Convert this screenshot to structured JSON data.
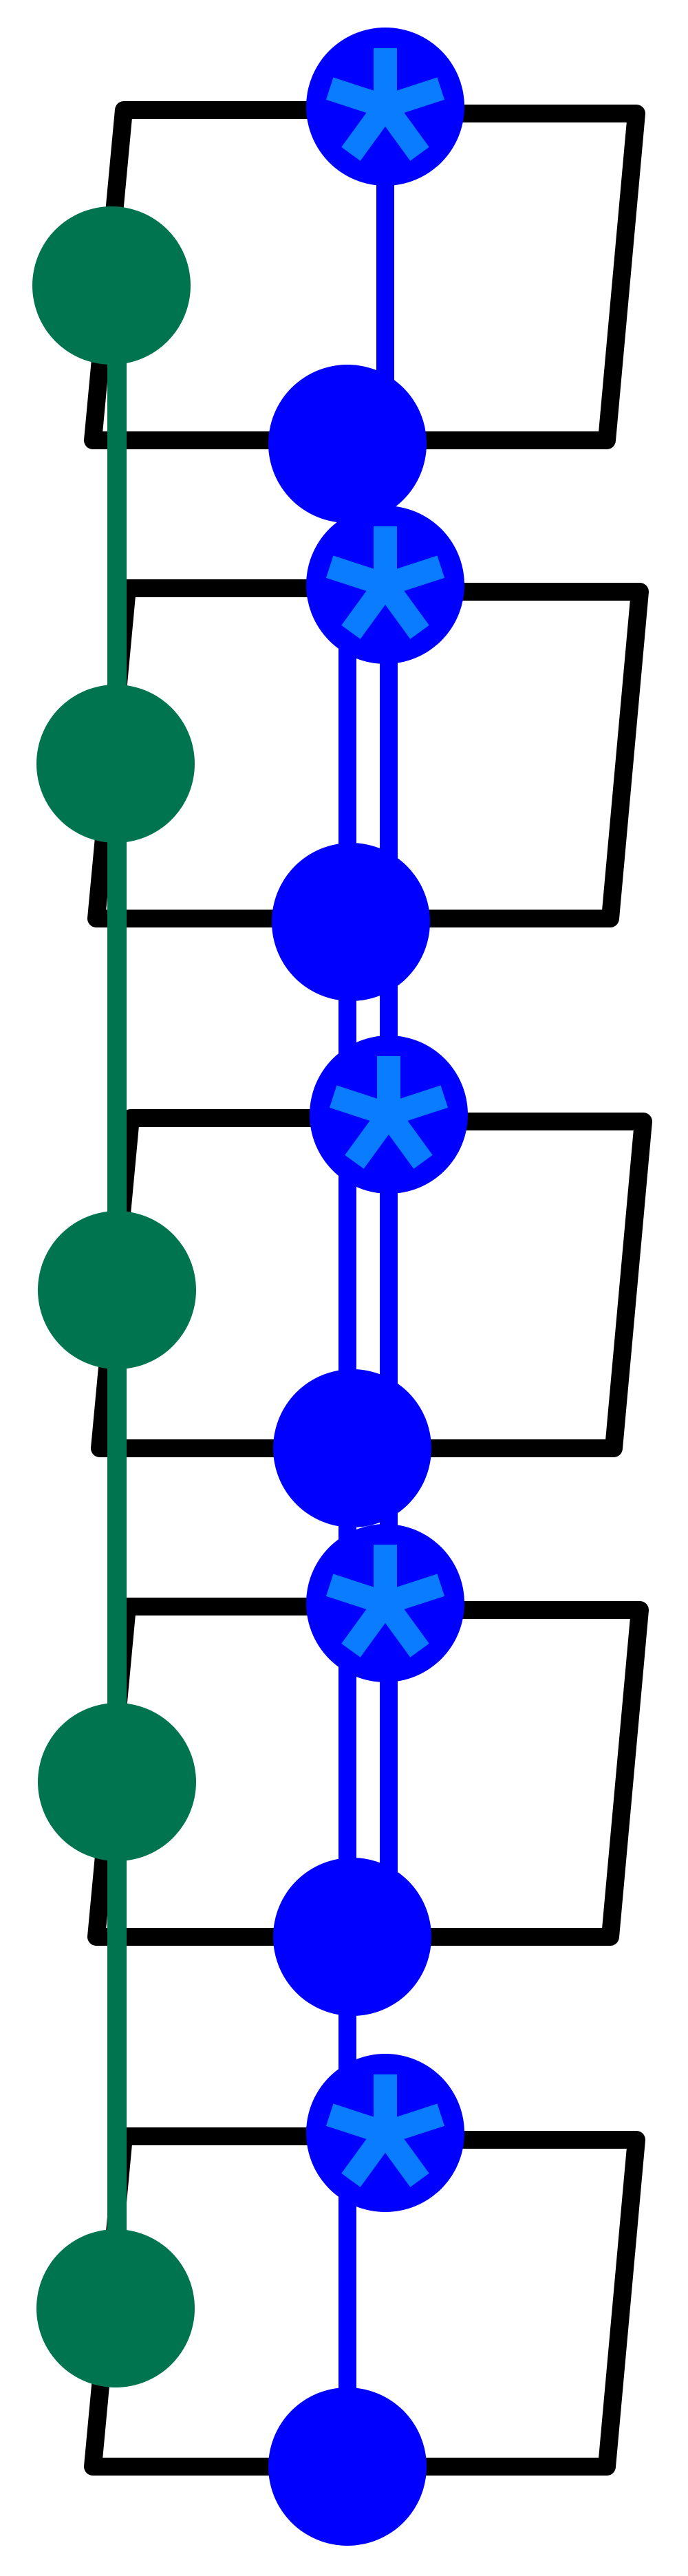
{
  "colors": {
    "background": "#ffffff",
    "frame": "#000000",
    "chain_green": "#00734f",
    "chain_blue": "#0000ff",
    "asterisk": "#0a7cff"
  },
  "diagram": {
    "frame_count": 5,
    "green_node_count": 5,
    "blue_star_node_count": 5,
    "blue_plain_node_count": 5,
    "star_node_icon": "asterisk-icon"
  }
}
